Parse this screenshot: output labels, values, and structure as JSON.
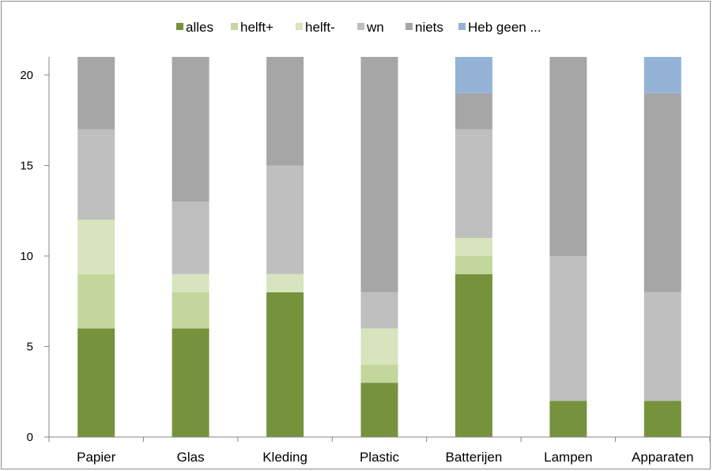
{
  "chart_data": {
    "type": "bar",
    "stacked": true,
    "categories": [
      "Papier",
      "Glas",
      "Kleding",
      "Plastic",
      "Batterijen",
      "Lampen",
      "Apparaten"
    ],
    "series": [
      {
        "name": "alles",
        "color": "#76923c",
        "values": [
          6,
          6,
          8,
          3,
          9,
          2,
          2
        ]
      },
      {
        "name": "helft+",
        "color": "#c3d69b",
        "values": [
          3,
          2,
          0,
          1,
          1,
          0,
          0
        ]
      },
      {
        "name": "helft-",
        "color": "#d7e4bd",
        "values": [
          3,
          1,
          1,
          2,
          1,
          0,
          0
        ]
      },
      {
        "name": "wn",
        "color": "#bfbfbf",
        "values": [
          5,
          4,
          6,
          2,
          6,
          8,
          6
        ]
      },
      {
        "name": "niets",
        "color": "#a6a6a6",
        "values": [
          4,
          8,
          6,
          13,
          2,
          11,
          11
        ]
      },
      {
        "name": "Heb geen ...",
        "color": "#95b3d7",
        "values": [
          0,
          0,
          0,
          0,
          2,
          0,
          2
        ]
      }
    ],
    "y_ticks": [
      "0",
      "5",
      "10",
      "15",
      "20"
    ],
    "ylim": [
      0,
      21
    ],
    "legend_position": "top",
    "grid": false
  }
}
